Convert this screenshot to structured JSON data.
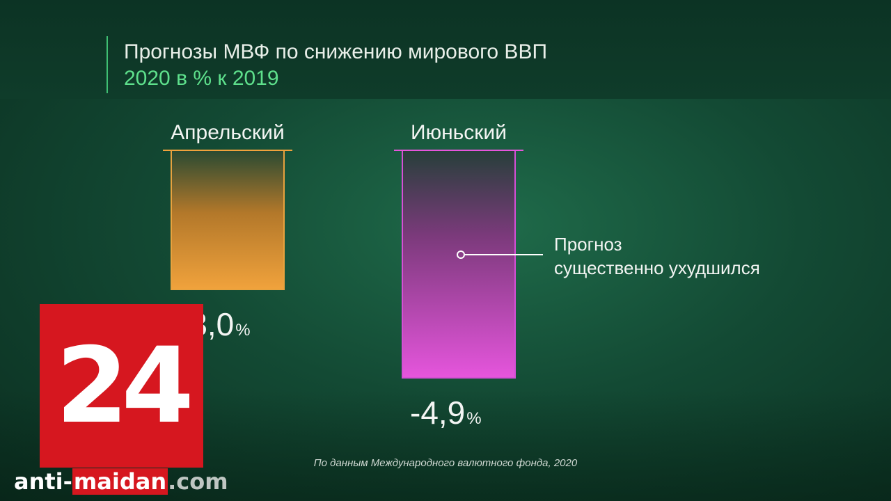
{
  "header": {
    "title": "Прогнозы МВФ по снижению мирового ВВП",
    "subtitle": "2020 в % к 2019"
  },
  "chart_data": {
    "type": "bar",
    "categories": [
      "Апрельский",
      "Июньский"
    ],
    "values": [
      -3.0,
      -4.9
    ],
    "value_labels": [
      "-3,0",
      "-4,9"
    ],
    "unit": "%",
    "colors": [
      "#f0a23c",
      "#e555dc"
    ],
    "annotation": [
      "Прогноз",
      "существенно ухудшился"
    ]
  },
  "source": "По данным Международного валютного фонда, 2020",
  "logo": {
    "text": "24"
  },
  "watermark": {
    "part1": "anti-",
    "part2": "maidan",
    "part3": ".com"
  }
}
